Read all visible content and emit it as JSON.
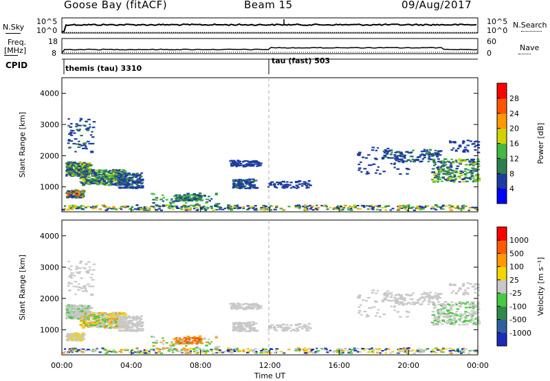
{
  "header": {
    "title": "Goose Bay (fitACF)",
    "beam": "Beam 15",
    "date": "09/Aug/2017"
  },
  "panels": {
    "nsky_label": "N.Sky",
    "nsearch_label": "N.Search",
    "freq_label_line1": "Freq.",
    "freq_label_line2": "[MHz]",
    "nave_label": "Nave",
    "cpid_label": "CPID",
    "noise_ticks": [
      "10^5",
      "10^0"
    ],
    "freq_ticks": [
      "18",
      "8"
    ],
    "nave_ticks": [
      "60",
      "0"
    ],
    "cpid_segments": [
      {
        "label": "themis (tau) 3310",
        "start_hour": 0
      },
      {
        "label": "tau (fast) 503",
        "start_hour": 12
      }
    ]
  },
  "chart_data": [
    {
      "type": "heatmap",
      "name": "power",
      "ylabel": "Slant Range [km]",
      "ylim": [
        200,
        4500
      ],
      "yticks": [
        "1000",
        "2000",
        "3000",
        "4000"
      ],
      "xlim_hours": [
        0,
        24
      ],
      "colorbar_label": "Power [dB]",
      "colorbar_ticks": [
        "4",
        "8",
        "12",
        "16",
        "20",
        "24",
        "28"
      ],
      "colorbar_colors": [
        "#0000ff",
        "#1e3ca0",
        "#2e7d4f",
        "#44b843",
        "#d2d200",
        "#ff9900",
        "#ff5500",
        "#ff0000"
      ]
    },
    {
      "type": "heatmap",
      "name": "velocity",
      "ylabel": "Slant Range [km]",
      "ylim": [
        200,
        4500
      ],
      "yticks": [
        "1000",
        "2000",
        "3000",
        "4000"
      ],
      "xlim_hours": [
        0,
        24
      ],
      "xlabel": "Time UT",
      "xticks": [
        "00:00",
        "04:00",
        "08:00",
        "12:00",
        "16:00",
        "20:00",
        "00:00"
      ],
      "colorbar_label": "Velocity [m s⁻¹]",
      "colorbar_ticks": [
        "1000",
        "500",
        "100",
        "25",
        "-25",
        "-100",
        "-500",
        "-1000"
      ],
      "colorbar_colors": [
        "#1c2bb8",
        "#2f5f9e",
        "#2f8a4a",
        "#49c93f",
        "#c8c8c8",
        "#f5d400",
        "#ff9900",
        "#ff5a00",
        "#ff0000"
      ]
    }
  ]
}
